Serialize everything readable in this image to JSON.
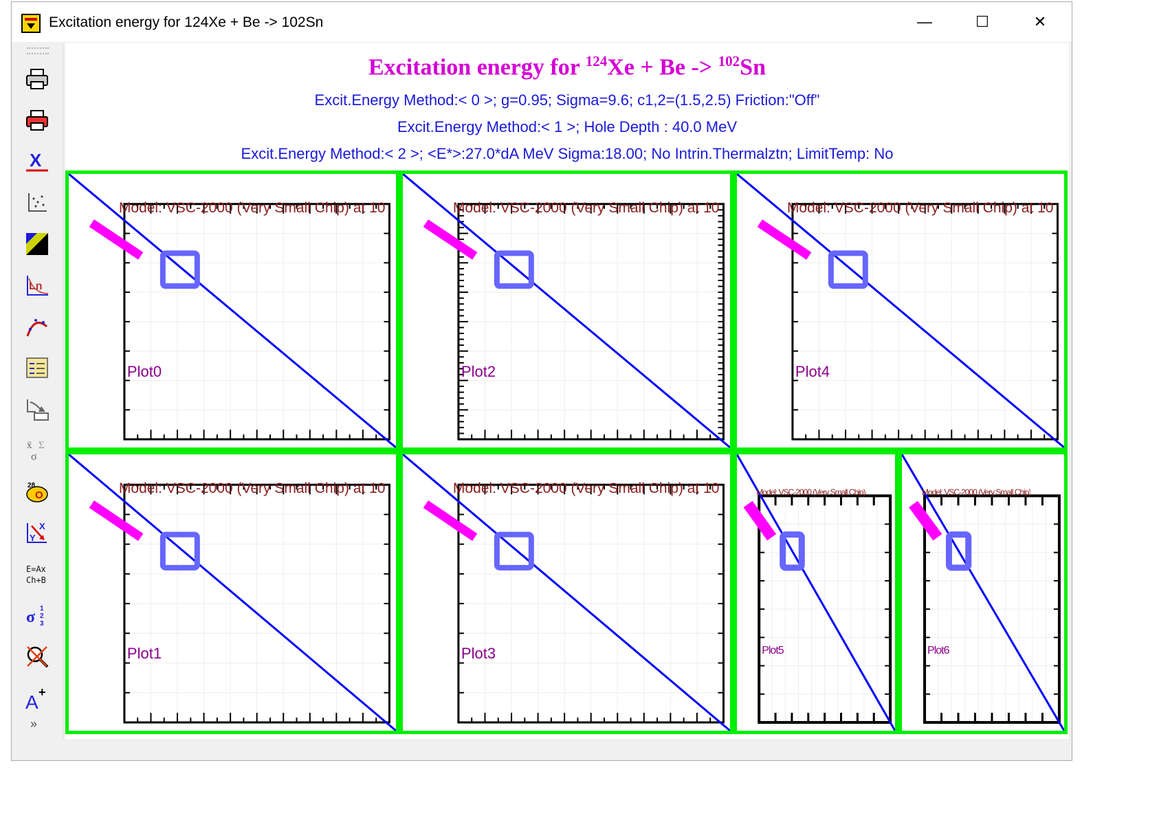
{
  "window": {
    "title": "Excitation energy for 124Xe + Be -> 102Sn",
    "minimize_glyph": "—",
    "maximize_glyph": "☐",
    "close_glyph": "✕"
  },
  "toolbar": {
    "buttons": [
      "printer-icon",
      "color-printer-icon",
      "x-axis-icon",
      "scatter-icon",
      "palette-icon",
      "log-scale-icon",
      "curve-fit-icon",
      "legend-icon",
      "export-icon",
      "statistics-icon",
      "nucleus-icon",
      "axis-swap-icon",
      "formula-icon",
      "sigma-icon",
      "no-zoom-icon",
      "add-text-icon"
    ],
    "more_glyph": "»"
  },
  "header": {
    "title_prefix": "Excitation energy for ",
    "title_mass1": "124",
    "title_part2": "Xe + Be -> ",
    "title_mass2": "102",
    "title_part3": "Sn",
    "line1": "Excit.Energy Method:< 0 >;  g=0.95;  Sigma=9.6;  c1,2=(1.5,2.5)  Friction:\"Off\"",
    "line2": "Excit.Energy Method:< 1 >;     Hole Depth :  40.0 MeV",
    "line3": "Excit.Energy Method:< 2 >;  <E*>:27.0*dA MeV  Sigma:18.00; No Intrin.Thermalztn; LimitTemp: No"
  },
  "panels": [
    {
      "model_text": "Model: VSC-2000 (Very Small Chip) at 10",
      "plot_label": "Plot0"
    },
    {
      "model_text": "Model: VSC-2000 (Very Small Chip) at 10",
      "plot_label": "Plot2"
    },
    {
      "model_text": "Model: VSC-2000 (Very Small Chip) at 10",
      "plot_label": "Plot4"
    },
    {
      "model_text": "Model: VSC-2000 (Very Small Chip) at 10",
      "plot_label": "Plot1"
    },
    {
      "model_text": "Model: VSC-2000 (Very Small Chip) at 10",
      "plot_label": "Plot3"
    },
    {
      "model_text": "Model: VSC-2000 (Very Small Chip)",
      "plot_label": "Plot5"
    },
    {
      "model_text": "Model: VSC-2000 (Very Small Chip)",
      "plot_label": "Plot6"
    }
  ],
  "colors": {
    "panel_border": "#00ee00",
    "diagonal": "#0000ff",
    "box": "#6666ff",
    "magenta_bar": "#ff00ff",
    "title": "#d400d4",
    "subtitle": "#1a1ad8"
  }
}
